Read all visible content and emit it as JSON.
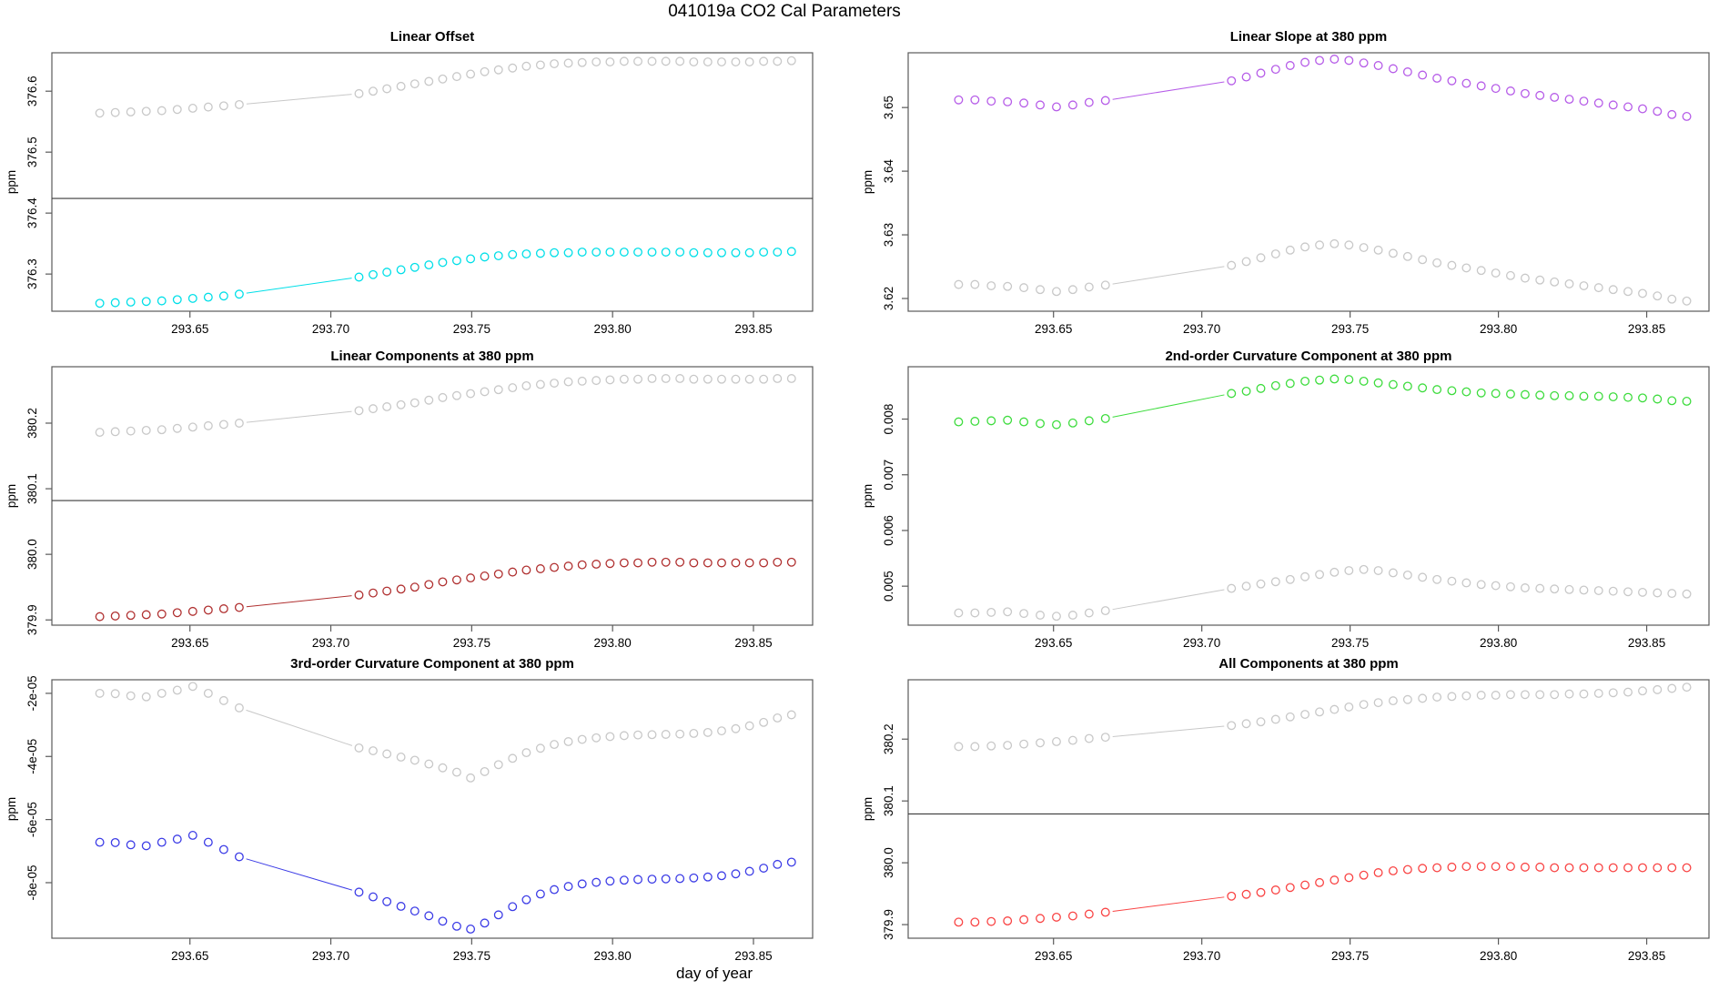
{
  "chart_data": {
    "type": "scatter",
    "main_title": "041019a   CO2 Cal Parameters",
    "xlabel": "day of year",
    "xlim": [
      293.601,
      293.871
    ],
    "x_ticks": [
      293.65,
      293.7,
      293.75,
      293.8,
      293.85
    ],
    "x_tick_labels": [
      "293.65",
      "293.70",
      "293.75",
      "293.80",
      "293.85"
    ],
    "x": [
      293.618,
      293.6235,
      293.629,
      293.6345,
      293.64,
      293.6455,
      293.651,
      293.6565,
      293.662,
      293.6675,
      293.71,
      293.715,
      293.7199,
      293.7249,
      293.7298,
      293.7348,
      293.7397,
      293.7447,
      293.7496,
      293.7546,
      293.7595,
      293.7645,
      293.7694,
      293.7744,
      293.7793,
      293.7843,
      293.7892,
      293.7942,
      293.7991,
      293.8041,
      293.809,
      293.814,
      293.8189,
      293.8239,
      293.8288,
      293.8338,
      293.8387,
      293.8437,
      293.8486,
      293.8536,
      293.8585,
      293.8635
    ],
    "axis_color": "#5a5a5a",
    "hline_color": "#3a3a3a",
    "panels": [
      {
        "id": "linear-offset",
        "title": "Linear Offset",
        "ylabel": "ppm",
        "ylim": [
          376.239,
          376.663
        ],
        "y_ticks": [
          376.3,
          376.4,
          376.5,
          376.6
        ],
        "y_tick_labels": [
          "376.3",
          "376.4",
          "376.5",
          "376.6"
        ],
        "hline": 376.424,
        "series": [
          {
            "name": "gray-reference",
            "color": "#c8c8c8",
            "values": [
              376.564,
              376.565,
              376.566,
              376.567,
              376.568,
              376.57,
              376.572,
              376.574,
              376.576,
              376.578,
              376.596,
              376.6,
              376.604,
              376.608,
              376.612,
              376.616,
              376.62,
              376.624,
              376.628,
              376.632,
              376.635,
              376.638,
              376.641,
              376.643,
              376.645,
              376.646,
              376.647,
              376.648,
              376.648,
              376.649,
              376.649,
              376.649,
              376.649,
              376.649,
              376.648,
              376.648,
              376.648,
              376.648,
              376.648,
              376.649,
              376.649,
              376.65
            ]
          },
          {
            "name": "cyan-current",
            "color": "#00dfe8",
            "values": [
              376.252,
              376.253,
              376.254,
              376.255,
              376.256,
              376.258,
              376.26,
              376.262,
              376.264,
              376.267,
              376.295,
              376.299,
              376.303,
              376.307,
              376.311,
              376.315,
              376.319,
              376.322,
              376.325,
              376.328,
              376.33,
              376.332,
              376.333,
              376.334,
              376.335,
              376.335,
              376.336,
              376.336,
              376.336,
              376.336,
              376.336,
              376.336,
              376.336,
              376.336,
              376.335,
              376.335,
              376.335,
              376.335,
              376.335,
              376.336,
              376.336,
              376.337
            ]
          }
        ]
      },
      {
        "id": "linear-slope",
        "title": "Linear Slope at 380 ppm",
        "ylabel": "ppm",
        "ylim": [
          3.618,
          3.6586
        ],
        "y_ticks": [
          3.62,
          3.63,
          3.64,
          3.65
        ],
        "y_tick_labels": [
          "3.62",
          "3.63",
          "3.64",
          "3.65"
        ],
        "hline": null,
        "series": [
          {
            "name": "gray-reference",
            "color": "#c8c8c8",
            "values": [
              3.6222,
              3.6222,
              3.622,
              3.6219,
              3.6217,
              3.6214,
              3.6211,
              3.6214,
              3.6218,
              3.6221,
              3.6252,
              3.6258,
              3.6264,
              3.627,
              3.6276,
              3.6281,
              3.6284,
              3.6286,
              3.6284,
              3.628,
              3.6276,
              3.6271,
              3.6266,
              3.6261,
              3.6256,
              3.6252,
              3.6248,
              3.6244,
              3.624,
              3.6236,
              3.6232,
              3.6229,
              3.6226,
              3.6223,
              3.622,
              3.6217,
              3.6214,
              3.6211,
              3.6208,
              3.6204,
              3.6199,
              3.6196
            ]
          },
          {
            "name": "purple-current",
            "color": "#b65ce8",
            "values": [
              3.6512,
              3.6512,
              3.651,
              3.6509,
              3.6507,
              3.6504,
              3.6501,
              3.6504,
              3.6508,
              3.6511,
              3.6542,
              3.6548,
              3.6554,
              3.656,
              3.6566,
              3.6571,
              3.6574,
              3.6576,
              3.6574,
              3.657,
              3.6566,
              3.6561,
              3.6556,
              3.6551,
              3.6546,
              3.6542,
              3.6538,
              3.6534,
              3.653,
              3.6526,
              3.6522,
              3.6519,
              3.6516,
              3.6513,
              3.651,
              3.6507,
              3.6504,
              3.6501,
              3.6498,
              3.6494,
              3.6489,
              3.6486
            ]
          }
        ]
      },
      {
        "id": "linear-components",
        "title": "Linear Components at 380 ppm",
        "ylabel": "ppm",
        "ylim": [
          379.892,
          380.286
        ],
        "y_ticks": [
          379.9,
          380.0,
          380.1,
          380.2
        ],
        "y_tick_labels": [
          "379.9",
          "380.0",
          "380.1",
          "380.2"
        ],
        "hline": 380.082,
        "series": [
          {
            "name": "gray-reference",
            "color": "#c8c8c8",
            "values": [
              380.186,
              380.187,
              380.188,
              380.189,
              380.19,
              380.192,
              380.194,
              380.196,
              380.198,
              380.2,
              380.219,
              380.222,
              380.225,
              380.228,
              380.231,
              380.235,
              380.239,
              380.242,
              380.245,
              380.248,
              380.251,
              380.254,
              380.257,
              380.259,
              380.261,
              380.263,
              380.264,
              380.265,
              380.266,
              380.267,
              380.267,
              380.268,
              380.268,
              380.268,
              380.267,
              380.267,
              380.267,
              380.267,
              380.267,
              380.267,
              380.268,
              380.268
            ]
          },
          {
            "name": "darkred-current",
            "color": "#b03030",
            "values": [
              379.905,
              379.906,
              379.907,
              379.908,
              379.909,
              379.911,
              379.913,
              379.915,
              379.917,
              379.919,
              379.938,
              379.941,
              379.944,
              379.947,
              379.95,
              379.954,
              379.958,
              379.961,
              379.964,
              379.967,
              379.97,
              379.973,
              379.976,
              379.978,
              379.98,
              379.982,
              379.984,
              379.985,
              379.986,
              379.987,
              379.987,
              379.988,
              379.988,
              379.988,
              379.987,
              379.987,
              379.987,
              379.987,
              379.987,
              379.987,
              379.988,
              379.988
            ]
          }
        ]
      },
      {
        "id": "second-order-curvature",
        "title": "2nd-order Curvature Component at 380 ppm",
        "ylabel": "ppm",
        "ylim": [
          0.0043,
          0.00894
        ],
        "y_ticks": [
          0.005,
          0.006,
          0.007,
          0.008
        ],
        "y_tick_labels": [
          "0.005",
          "0.006",
          "0.007",
          "0.008"
        ],
        "hline": null,
        "series": [
          {
            "name": "gray-reference",
            "color": "#c8c8c8",
            "values": [
              0.00452,
              0.00452,
              0.00453,
              0.00454,
              0.00451,
              0.00448,
              0.00446,
              0.00448,
              0.00452,
              0.00456,
              0.00496,
              0.005,
              0.00504,
              0.00508,
              0.00512,
              0.00517,
              0.00521,
              0.00525,
              0.00528,
              0.0053,
              0.00528,
              0.00524,
              0.0052,
              0.00516,
              0.00512,
              0.00509,
              0.00506,
              0.00503,
              0.00501,
              0.00499,
              0.00497,
              0.00496,
              0.00495,
              0.00494,
              0.00493,
              0.00492,
              0.00491,
              0.0049,
              0.00489,
              0.00488,
              0.00487,
              0.00486
            ]
          },
          {
            "name": "green-current",
            "color": "#3ddc3d",
            "values": [
              0.00795,
              0.00796,
              0.00797,
              0.00798,
              0.00795,
              0.00792,
              0.0079,
              0.00793,
              0.00797,
              0.00801,
              0.00846,
              0.0085,
              0.00855,
              0.0086,
              0.00864,
              0.00868,
              0.0087,
              0.00872,
              0.00871,
              0.00868,
              0.00865,
              0.00862,
              0.00859,
              0.00856,
              0.00853,
              0.00851,
              0.00849,
              0.00847,
              0.00846,
              0.00845,
              0.00844,
              0.00843,
              0.00842,
              0.00842,
              0.00841,
              0.00841,
              0.0084,
              0.00839,
              0.00838,
              0.00836,
              0.00833,
              0.00832
            ]
          }
        ]
      },
      {
        "id": "third-order-curvature",
        "title": "3rd-order Curvature Component at 380 ppm",
        "ylabel": "ppm",
        "ylim": [
          -9.76e-05,
          -1.57e-05
        ],
        "y_ticks": [
          -8e-05,
          -6e-05,
          -4e-05,
          -2e-05
        ],
        "y_tick_labels": [
          "-8e-05",
          "-6e-05",
          "-4e-05",
          "-2e-05"
        ],
        "hline": null,
        "series": [
          {
            "name": "gray-reference",
            "color": "#c8c8c8",
            "values": [
              -2e-05,
              -2.01e-05,
              -2.08e-05,
              -2.11e-05,
              -2e-05,
              -1.9e-05,
              -1.78e-05,
              -2e-05,
              -2.23e-05,
              -2.46e-05,
              -3.73e-05,
              -3.82e-05,
              -3.92e-05,
              -4.02e-05,
              -4.12e-05,
              -4.24e-05,
              -4.36e-05,
              -4.5e-05,
              -4.68e-05,
              -4.48e-05,
              -4.26e-05,
              -4.06e-05,
              -3.88e-05,
              -3.74e-05,
              -3.62e-05,
              -3.53e-05,
              -3.46e-05,
              -3.41e-05,
              -3.37e-05,
              -3.34e-05,
              -3.32e-05,
              -3.31e-05,
              -3.3e-05,
              -3.29e-05,
              -3.27e-05,
              -3.24e-05,
              -3.19e-05,
              -3.12e-05,
              -3.03e-05,
              -2.92e-05,
              -2.78e-05,
              -2.68e-05
            ]
          },
          {
            "name": "blue-current",
            "color": "#3c3ce6",
            "values": [
              -6.72e-05,
              -6.73e-05,
              -6.8e-05,
              -6.83e-05,
              -6.72e-05,
              -6.62e-05,
              -6.5e-05,
              -6.72e-05,
              -6.95e-05,
              -7.18e-05,
              -8.3e-05,
              -8.45e-05,
              -8.6e-05,
              -8.75e-05,
              -8.9e-05,
              -9.05e-05,
              -9.22e-05,
              -9.38e-05,
              -9.47e-05,
              -9.28e-05,
              -9.02e-05,
              -8.76e-05,
              -8.54e-05,
              -8.36e-05,
              -8.22e-05,
              -8.12e-05,
              -8.04e-05,
              -7.99e-05,
              -7.95e-05,
              -7.92e-05,
              -7.9e-05,
              -7.89e-05,
              -7.88e-05,
              -7.87e-05,
              -7.85e-05,
              -7.82e-05,
              -7.78e-05,
              -7.72e-05,
              -7.64e-05,
              -7.54e-05,
              -7.42e-05,
              -7.35e-05
            ]
          }
        ]
      },
      {
        "id": "all-components",
        "title": "All Components at 380 ppm",
        "ylabel": "ppm",
        "ylim": [
          379.878,
          380.296
        ],
        "y_ticks": [
          379.9,
          380.0,
          380.1,
          380.2
        ],
        "y_tick_labels": [
          "379.9",
          "380.0",
          "380.1",
          "380.2"
        ],
        "hline": 380.079,
        "series": [
          {
            "name": "gray-reference",
            "color": "#c8c8c8",
            "values": [
              380.188,
              380.188,
              380.189,
              380.19,
              380.192,
              380.194,
              380.196,
              380.198,
              380.201,
              380.203,
              380.222,
              380.225,
              380.228,
              380.232,
              380.236,
              380.24,
              380.244,
              380.248,
              380.252,
              380.256,
              380.259,
              380.262,
              380.264,
              380.266,
              380.268,
              380.269,
              380.27,
              380.271,
              380.271,
              380.272,
              380.272,
              380.272,
              380.272,
              380.273,
              380.273,
              380.274,
              380.275,
              380.276,
              380.278,
              380.28,
              380.282,
              380.284
            ]
          },
          {
            "name": "red-current",
            "color": "#f94444",
            "values": [
              379.904,
              379.904,
              379.905,
              379.906,
              379.908,
              379.91,
              379.912,
              379.914,
              379.917,
              379.92,
              379.946,
              379.949,
              379.952,
              379.956,
              379.96,
              379.964,
              379.968,
              379.972,
              379.976,
              379.98,
              379.984,
              379.987,
              379.989,
              379.991,
              379.992,
              379.993,
              379.994,
              379.994,
              379.994,
              379.994,
              379.993,
              379.993,
              379.992,
              379.992,
              379.992,
              379.992,
              379.992,
              379.992,
              379.992,
              379.992,
              379.992,
              379.992
            ]
          }
        ]
      }
    ]
  }
}
